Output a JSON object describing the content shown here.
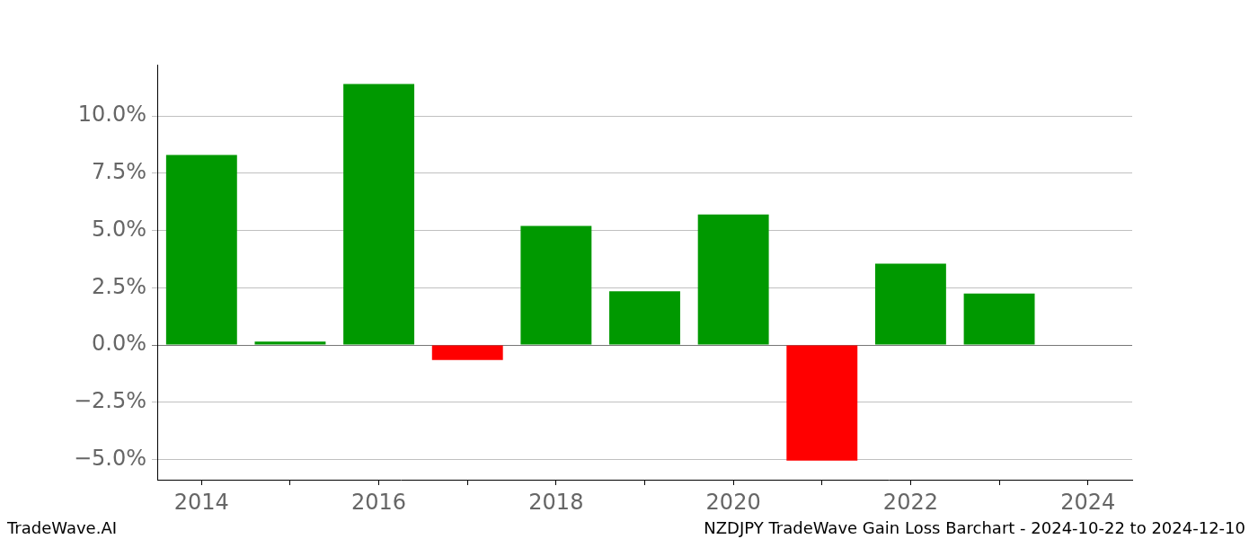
{
  "chart_data": {
    "type": "bar",
    "title": "NZDJPY TradeWave Gain Loss Barchart - 2024-10-22 to 2024-12-10",
    "source": "TradeWave.AI",
    "categories": [
      "2014",
      null,
      "2016",
      null,
      "2018",
      null,
      "2020",
      null,
      "2022",
      null,
      "2024"
    ],
    "values": [
      8.3,
      0.15,
      11.4,
      -0.65,
      5.2,
      2.35,
      5.7,
      -5.05,
      3.55,
      2.25,
      0
    ],
    "colors": [
      "#009900",
      "#009900",
      "#009900",
      "#ff0000",
      "#009900",
      "#009900",
      "#009900",
      "#ff0000",
      "#009900",
      "#009900",
      "#009900"
    ],
    "ylim": [
      -5.88,
      12.24
    ],
    "yticks": [
      {
        "value": -5,
        "label": "−5.0%"
      },
      {
        "value": -2.5,
        "label": "−2.5%"
      },
      {
        "value": 0,
        "label": "0.0%"
      },
      {
        "value": 2.5,
        "label": "2.5%"
      },
      {
        "value": 5,
        "label": "5.0%"
      },
      {
        "value": 7.5,
        "label": "7.5%"
      },
      {
        "value": 10,
        "label": "10.0%"
      }
    ],
    "grid": true
  }
}
